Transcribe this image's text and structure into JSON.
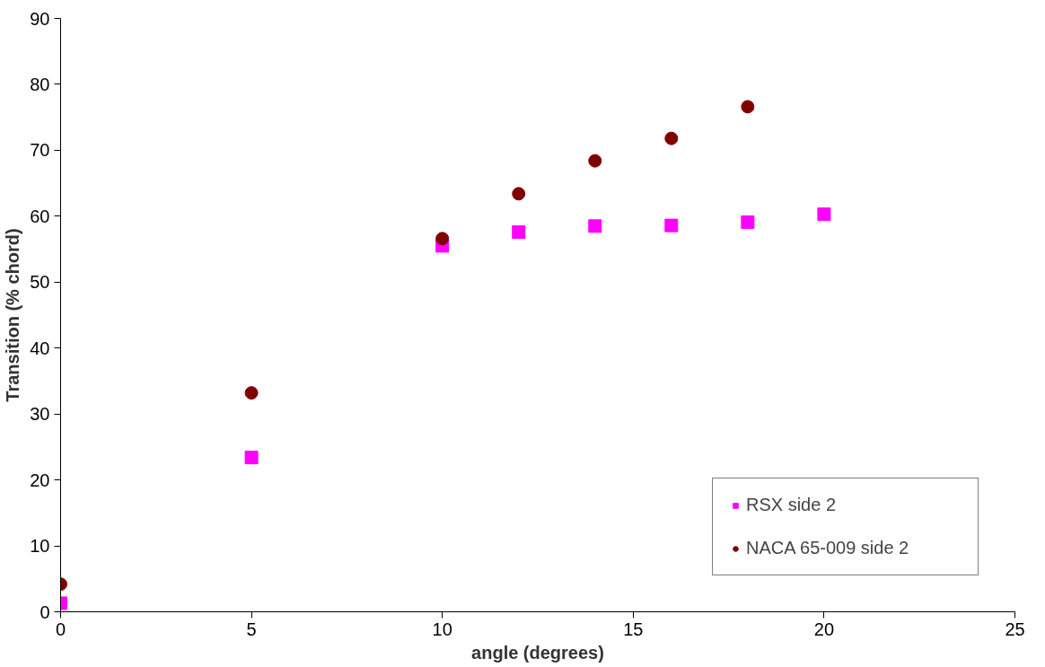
{
  "chart_data": {
    "type": "scatter",
    "xlabel": "angle (degrees)",
    "ylabel": "Transition (% chord)",
    "xlim": [
      0,
      25
    ],
    "xticks": [
      0,
      5,
      10,
      15,
      20,
      25
    ],
    "ylim": [
      0,
      90
    ],
    "yticks": [
      0,
      10,
      20,
      30,
      40,
      50,
      60,
      70,
      80,
      90
    ],
    "grid": false,
    "legend": "bottom right",
    "series": [
      {
        "name": "RSX side 2",
        "color": "#ff00ff",
        "marker": "square",
        "x": [
          0,
          5,
          10,
          12,
          14,
          16,
          18,
          20
        ],
        "values": [
          1.3,
          23.4,
          55.5,
          57.6,
          58.5,
          58.6,
          59.1,
          60.3
        ]
      },
      {
        "name": "NACA 65-009 side 2",
        "color": "#800000",
        "marker": "circle",
        "x": [
          0,
          5,
          10,
          12,
          14,
          16,
          18
        ],
        "values": [
          4.2,
          33.2,
          56.6,
          63.4,
          68.4,
          71.8,
          76.6
        ]
      }
    ]
  }
}
